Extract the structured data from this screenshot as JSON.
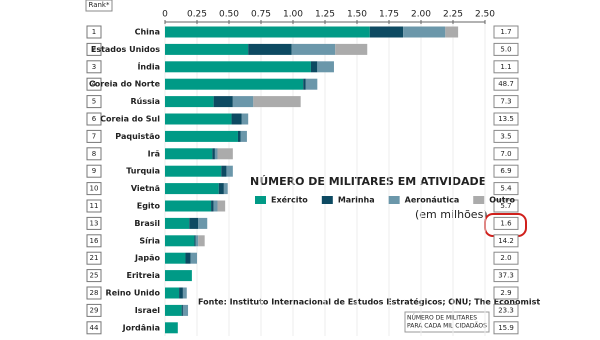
{
  "chart_data": {
    "type": "bar",
    "orientation": "horizontal",
    "stacked": true,
    "rank_header": "Rank*",
    "ranks": [
      "1",
      "2",
      "3",
      "4",
      "5",
      "6",
      "7",
      "8",
      "9",
      "10",
      "11",
      "13",
      "16",
      "21",
      "25",
      "28",
      "29",
      "44"
    ],
    "categories": [
      "China",
      "Estados Unidos",
      "Índia",
      "Coreia do Norte",
      "Rússia",
      "Coreia do Sul",
      "Paquistão",
      "Irã",
      "Turquia",
      "Vietnã",
      "Egito",
      "Brasil",
      "Síria",
      "Japão",
      "Eritreia",
      "Reino Unido",
      "Israel",
      "Jordânia"
    ],
    "series": [
      {
        "name": "Exército",
        "color": "#009a86",
        "values": [
          1.6,
          0.65,
          1.14,
          1.08,
          0.38,
          0.52,
          0.57,
          0.37,
          0.44,
          0.42,
          0.36,
          0.19,
          0.23,
          0.16,
          0.21,
          0.11,
          0.13,
          0.1
        ]
      },
      {
        "name": "Marinha",
        "color": "#0d4a62",
        "values": [
          0.26,
          0.34,
          0.05,
          0.02,
          0.15,
          0.08,
          0.02,
          0.02,
          0.04,
          0.04,
          0.02,
          0.07,
          0.01,
          0.04,
          0,
          0.03,
          0.01,
          0
        ]
      },
      {
        "name": "Aeronáutica",
        "color": "#6b97aa",
        "values": [
          0.33,
          0.34,
          0.13,
          0.09,
          0.16,
          0.05,
          0.05,
          0.02,
          0.05,
          0.03,
          0.03,
          0.07,
          0.02,
          0.05,
          0,
          0.03,
          0.04,
          0
        ]
      },
      {
        "name": "Outro",
        "color": "#ababab",
        "values": [
          0.1,
          0.25,
          0,
          0,
          0.37,
          0,
          0,
          0.12,
          0,
          0,
          0.06,
          0,
          0.05,
          0,
          0,
          0,
          0,
          0
        ]
      }
    ],
    "xlim": [
      0,
      2.5
    ],
    "xticks": [
      0,
      0.25,
      {
        "value": 0.5,
        "label": "0.50"
      },
      0.75,
      {
        "value": 1,
        "label": "1.00"
      },
      1.25,
      {
        "value": 1.5,
        "label": "1.50"
      },
      1.75,
      {
        "value": 2,
        "label": "2.00"
      },
      2.25,
      {
        "value": 2.5,
        "label": "2.50"
      }
    ],
    "title": "NÚMERO DE MILITARES EM ATIVIDADE",
    "unit_label": "(em milhões)",
    "source": "Fonte: Instituto Internacional de Estudos Estratégicos; ONU; The Economist",
    "per_thousand": [
      "1.7",
      "5.0",
      "1.1",
      "48.7",
      "7.3",
      "13.5",
      "3.5",
      "7.0",
      "6.9",
      "5.4",
      "5.7",
      "1.6",
      "14.2",
      "2.0",
      "37.3",
      "2.9",
      "23.3",
      "15.9"
    ],
    "per_thousand_label": [
      "NÚMERO DE MILITARES",
      "PARA CADA MIL CIDADÃOS"
    ]
  }
}
